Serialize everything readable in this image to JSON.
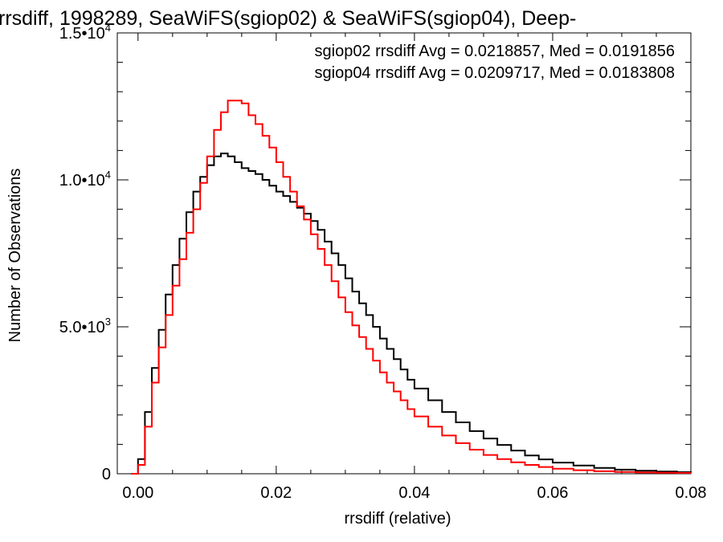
{
  "chart_data": {
    "type": "line",
    "title": "rrsdiff, 1998289, SeaWiFS(sgiop02) & SeaWiFS(sgiop04), Deep-",
    "xlabel": "rrsdiff (relative)",
    "ylabel": "Number of Observations",
    "xlim": [
      -0.003,
      0.08
    ],
    "ylim": [
      0,
      15000
    ],
    "x_ticks": [
      {
        "value": 0.0,
        "label": "0.00"
      },
      {
        "value": 0.02,
        "label": "0.02"
      },
      {
        "value": 0.04,
        "label": "0.04"
      },
      {
        "value": 0.06,
        "label": "0.06"
      },
      {
        "value": 0.08,
        "label": "0.08"
      }
    ],
    "y_ticks": [
      {
        "value": 0,
        "mantissa": "0",
        "exponent": ""
      },
      {
        "value": 5000,
        "mantissa": "5.0•10",
        "exponent": "3"
      },
      {
        "value": 10000,
        "mantissa": "1.0•10",
        "exponent": "4"
      },
      {
        "value": 15000,
        "mantissa": "1.5•10",
        "exponent": "4"
      }
    ],
    "annotations": [
      {
        "text": "sgiop02 rrsdiff Avg = 0.0218857, Med = 0.0191856",
        "color": "#000000"
      },
      {
        "text": "sgiop04 rrsdiff Avg = 0.0209717, Med = 0.0183808",
        "color": "#ff0000"
      }
    ],
    "series": [
      {
        "color": "#000000",
        "x": [
          -0.001,
          0.0,
          0.001,
          0.002,
          0.003,
          0.004,
          0.005,
          0.006,
          0.007,
          0.008,
          0.009,
          0.01,
          0.011,
          0.012,
          0.013,
          0.014,
          0.015,
          0.016,
          0.017,
          0.018,
          0.019,
          0.02,
          0.021,
          0.022,
          0.023,
          0.024,
          0.025,
          0.026,
          0.027,
          0.028,
          0.029,
          0.03,
          0.031,
          0.032,
          0.033,
          0.034,
          0.035,
          0.036,
          0.037,
          0.038,
          0.039,
          0.04,
          0.042,
          0.044,
          0.046,
          0.048,
          0.05,
          0.052,
          0.054,
          0.056,
          0.058,
          0.06,
          0.063,
          0.066,
          0.069,
          0.072,
          0.075,
          0.078,
          0.08
        ],
        "y": [
          0,
          500,
          2100,
          3600,
          4900,
          6100,
          7100,
          8000,
          8900,
          9600,
          10100,
          10500,
          10800,
          10900,
          10800,
          10600,
          10400,
          10300,
          10200,
          10000,
          9800,
          9600,
          9450,
          9250,
          9050,
          8850,
          8600,
          8300,
          7900,
          7500,
          7100,
          6650,
          6200,
          5800,
          5400,
          5000,
          4600,
          4250,
          3900,
          3550,
          3200,
          2900,
          2500,
          2100,
          1750,
          1450,
          1200,
          980,
          790,
          620,
          490,
          380,
          280,
          200,
          140,
          100,
          75,
          55,
          45
        ]
      },
      {
        "color": "#ff0000",
        "x": [
          -0.001,
          0.0,
          0.001,
          0.002,
          0.003,
          0.004,
          0.005,
          0.006,
          0.007,
          0.008,
          0.009,
          0.01,
          0.011,
          0.012,
          0.013,
          0.014,
          0.015,
          0.016,
          0.017,
          0.018,
          0.019,
          0.02,
          0.021,
          0.022,
          0.023,
          0.024,
          0.025,
          0.026,
          0.027,
          0.028,
          0.029,
          0.03,
          0.031,
          0.032,
          0.033,
          0.034,
          0.035,
          0.036,
          0.037,
          0.038,
          0.039,
          0.04,
          0.042,
          0.044,
          0.046,
          0.048,
          0.05,
          0.052,
          0.054,
          0.056,
          0.058,
          0.06,
          0.063,
          0.066,
          0.069,
          0.072,
          0.075,
          0.078,
          0.08
        ],
        "y": [
          0,
          300,
          1600,
          3100,
          4300,
          5400,
          6400,
          7300,
          8200,
          9000,
          9900,
          10800,
          11700,
          12300,
          12700,
          12700,
          12600,
          12200,
          11900,
          11500,
          11100,
          10600,
          10100,
          9600,
          9100,
          8650,
          8150,
          7650,
          7100,
          6550,
          6000,
          5500,
          5050,
          4650,
          4250,
          3850,
          3450,
          3100,
          2800,
          2500,
          2200,
          1950,
          1600,
          1300,
          1040,
          820,
          640,
          500,
          390,
          300,
          230,
          170,
          120,
          85,
          60,
          45,
          35,
          28,
          25
        ]
      }
    ]
  }
}
